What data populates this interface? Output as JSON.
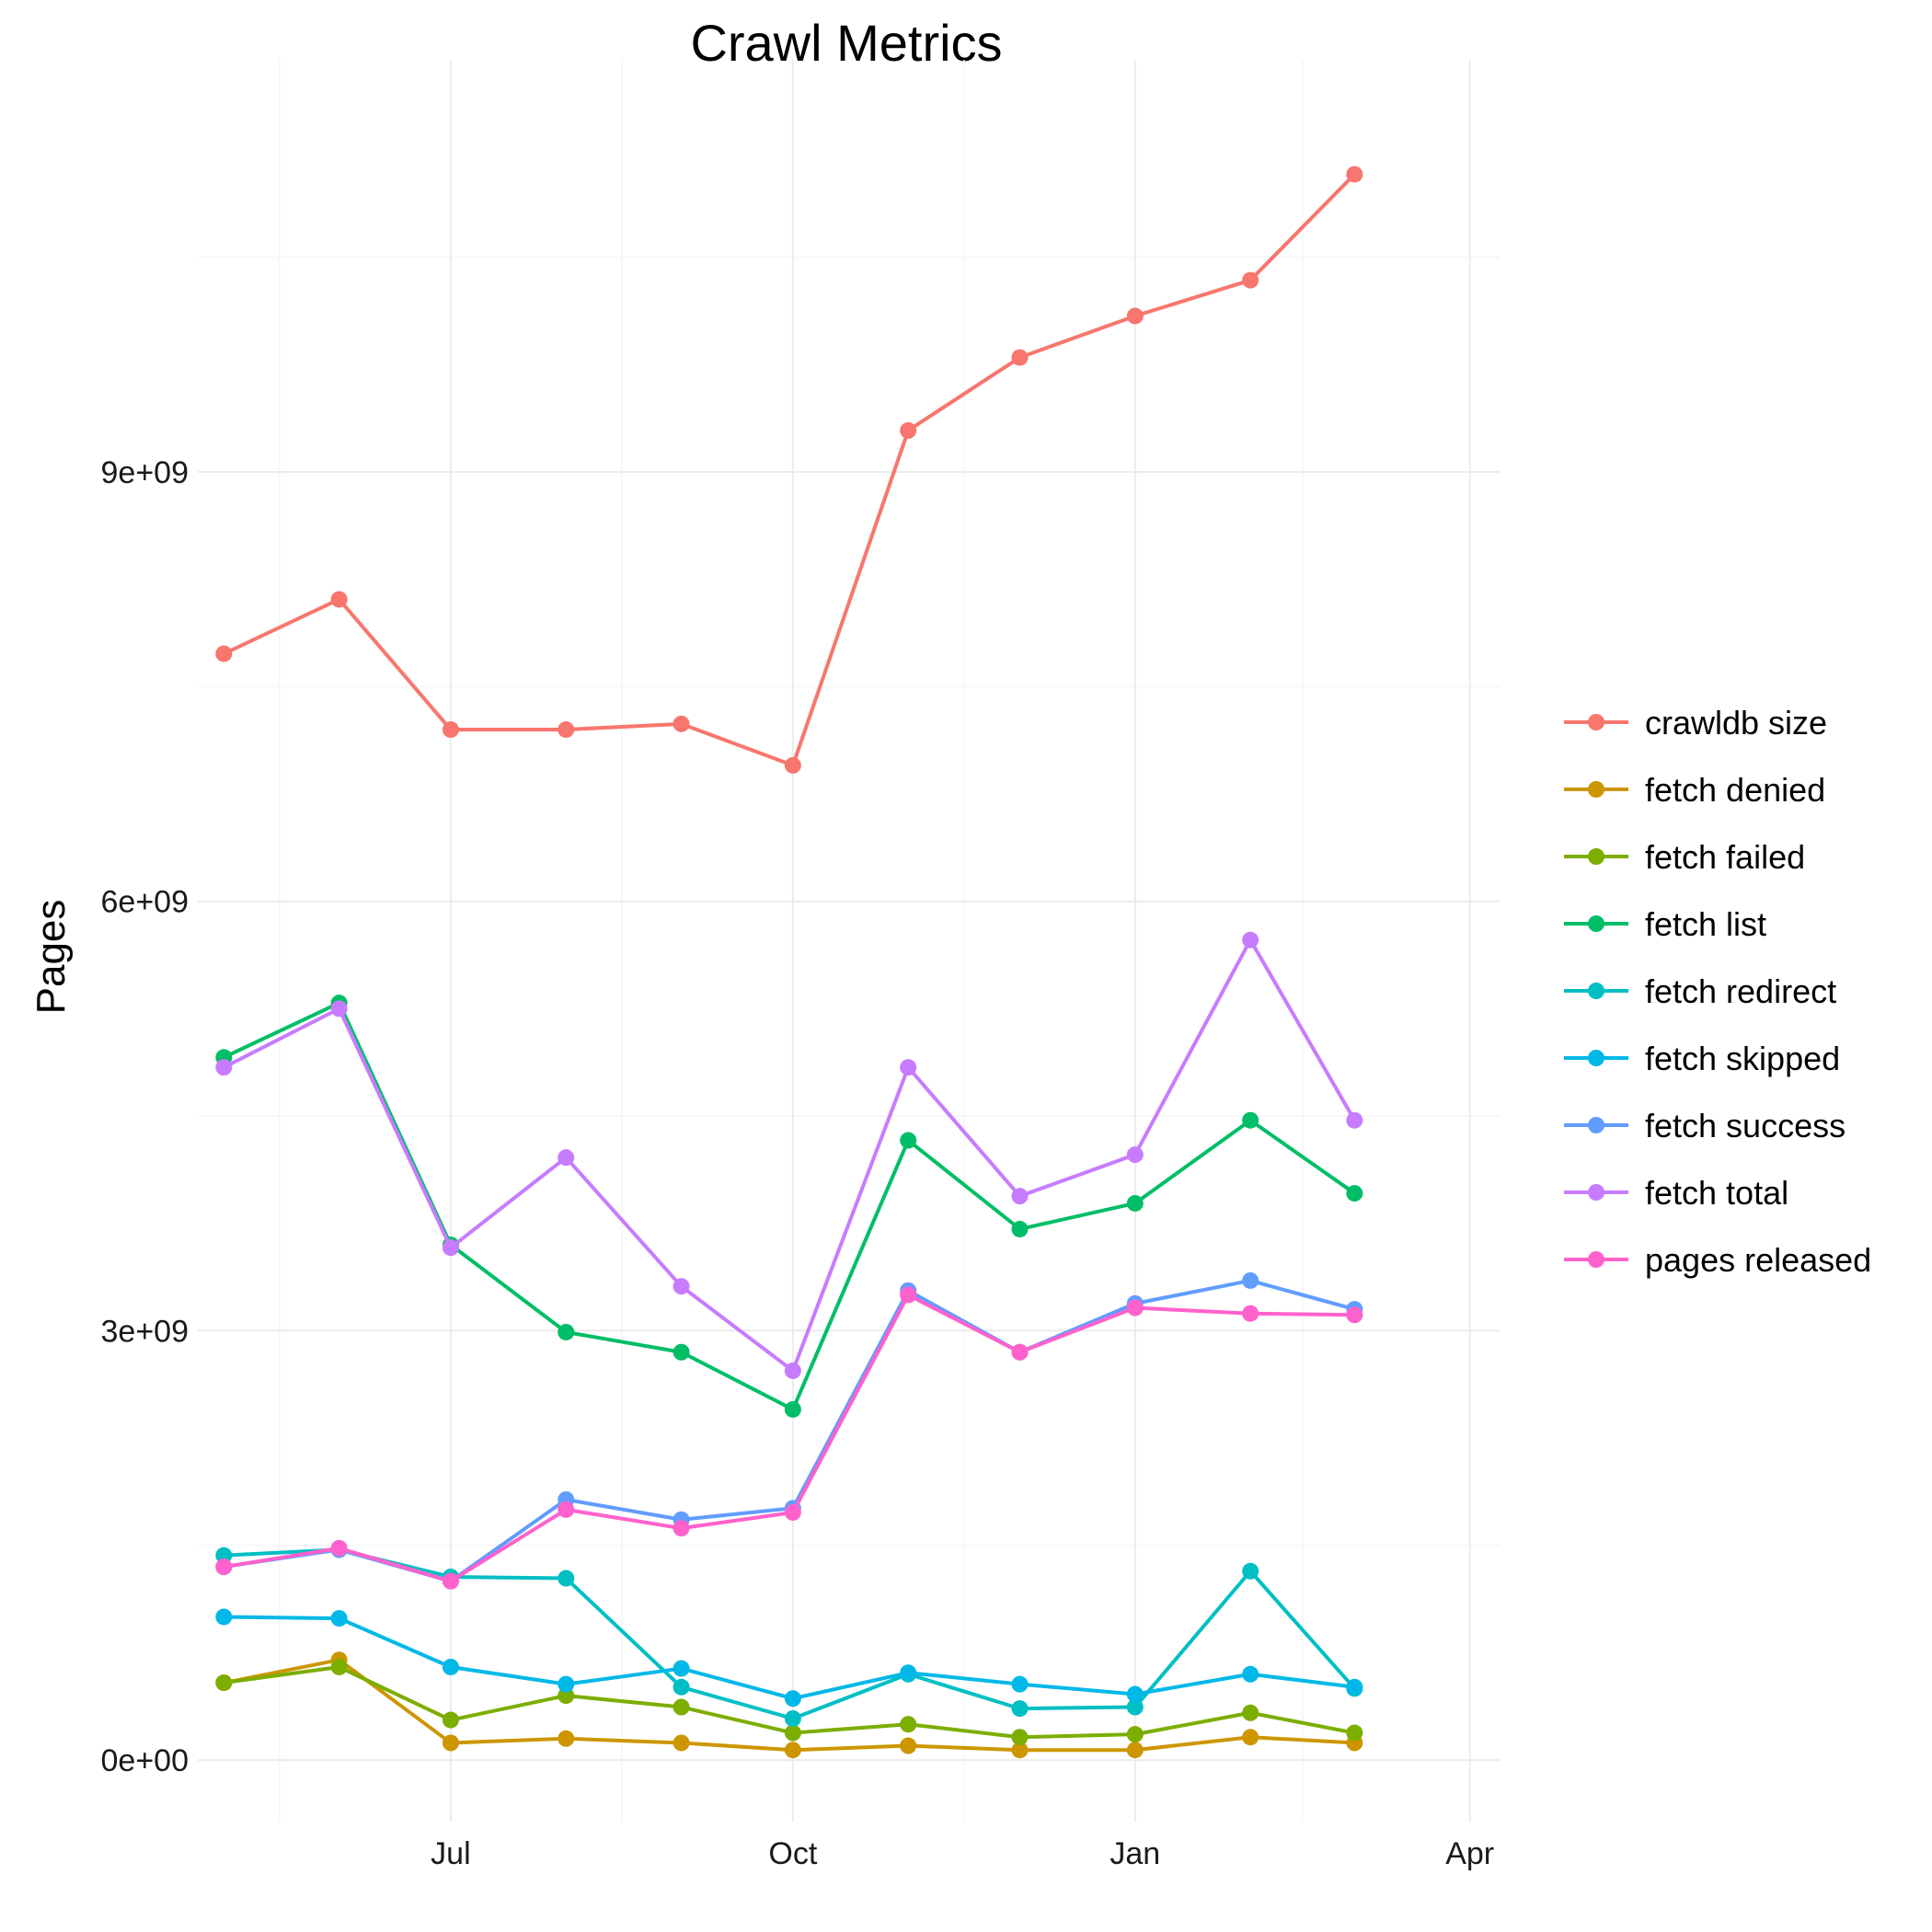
{
  "chart_data": {
    "type": "line",
    "title": "Crawl Metrics",
    "xlabel": "",
    "ylabel": "Pages",
    "grid": true,
    "legend_position": "right",
    "x": [
      "2016-05-01",
      "2016-06-01",
      "2016-07-01",
      "2016-08-01",
      "2016-09-01",
      "2016-10-01",
      "2016-11-01",
      "2016-12-01",
      "2017-01-01",
      "2017-02-01",
      "2017-03-01",
      "2017-03-31"
    ],
    "x_ticks": [
      {
        "label": "Jul",
        "date": "2016-07-01"
      },
      {
        "label": "Oct",
        "date": "2016-10-01"
      },
      {
        "label": "Jan",
        "date": "2017-01-01"
      },
      {
        "label": "Apr",
        "date": "2017-04-01"
      }
    ],
    "x_range": [
      "2016-04-24",
      "2017-04-09"
    ],
    "y_ticks": [
      {
        "label": "0e+00",
        "value": 0
      },
      {
        "label": "3e+09",
        "value": 3000000000
      },
      {
        "label": "6e+09",
        "value": 6000000000
      },
      {
        "label": "9e+09",
        "value": 9000000000
      }
    ],
    "ylim": [
      -430000000,
      11880000000
    ],
    "series": [
      {
        "name": "crawldb size",
        "color": "#F8766D",
        "values": [
          7730000000,
          8110000000,
          7200000000,
          7200000000,
          7240000000,
          6950000000,
          9290000000,
          9800000000,
          10090000000,
          10340000000,
          11080000000,
          null
        ]
      },
      {
        "name": "fetch denied",
        "color": "#CD9600",
        "values": [
          540000000,
          700000000,
          120000000,
          150000000,
          120000000,
          70000000,
          100000000,
          70000000,
          70000000,
          160000000,
          120000000,
          null
        ]
      },
      {
        "name": "fetch failed",
        "color": "#7CAE00",
        "values": [
          540000000,
          650000000,
          280000000,
          450000000,
          370000000,
          190000000,
          250000000,
          160000000,
          180000000,
          330000000,
          190000000,
          null
        ]
      },
      {
        "name": "fetch list",
        "color": "#00BE67",
        "values": [
          4910000000,
          5290000000,
          3600000000,
          2990000000,
          2850000000,
          2450000000,
          4330000000,
          3710000000,
          3890000000,
          4470000000,
          3960000000,
          null
        ]
      },
      {
        "name": "fetch redirect",
        "color": "#00BFC4",
        "values": [
          1430000000,
          1470000000,
          1280000000,
          1270000000,
          510000000,
          290000000,
          600000000,
          360000000,
          370000000,
          1320000000,
          500000000,
          null
        ]
      },
      {
        "name": "fetch skipped",
        "color": "#00B8E7",
        "values": [
          1000000000,
          990000000,
          650000000,
          530000000,
          640000000,
          430000000,
          610000000,
          530000000,
          460000000,
          600000000,
          510000000,
          null
        ]
      },
      {
        "name": "fetch success",
        "color": "#619CFF",
        "values": [
          1350000000,
          1470000000,
          1250000000,
          1820000000,
          1680000000,
          1760000000,
          3280000000,
          2850000000,
          3190000000,
          3350000000,
          3150000000,
          null
        ]
      },
      {
        "name": "fetch total",
        "color": "#C77CFF",
        "values": [
          4840000000,
          5250000000,
          3580000000,
          4210000000,
          3310000000,
          2720000000,
          4840000000,
          3940000000,
          4230000000,
          5730000000,
          4470000000,
          null
        ]
      },
      {
        "name": "pages released",
        "color": "#FF61CC",
        "values": [
          1350000000,
          1480000000,
          1250000000,
          1750000000,
          1620000000,
          1730000000,
          3250000000,
          2850000000,
          3160000000,
          3120000000,
          3110000000,
          null
        ]
      }
    ]
  }
}
